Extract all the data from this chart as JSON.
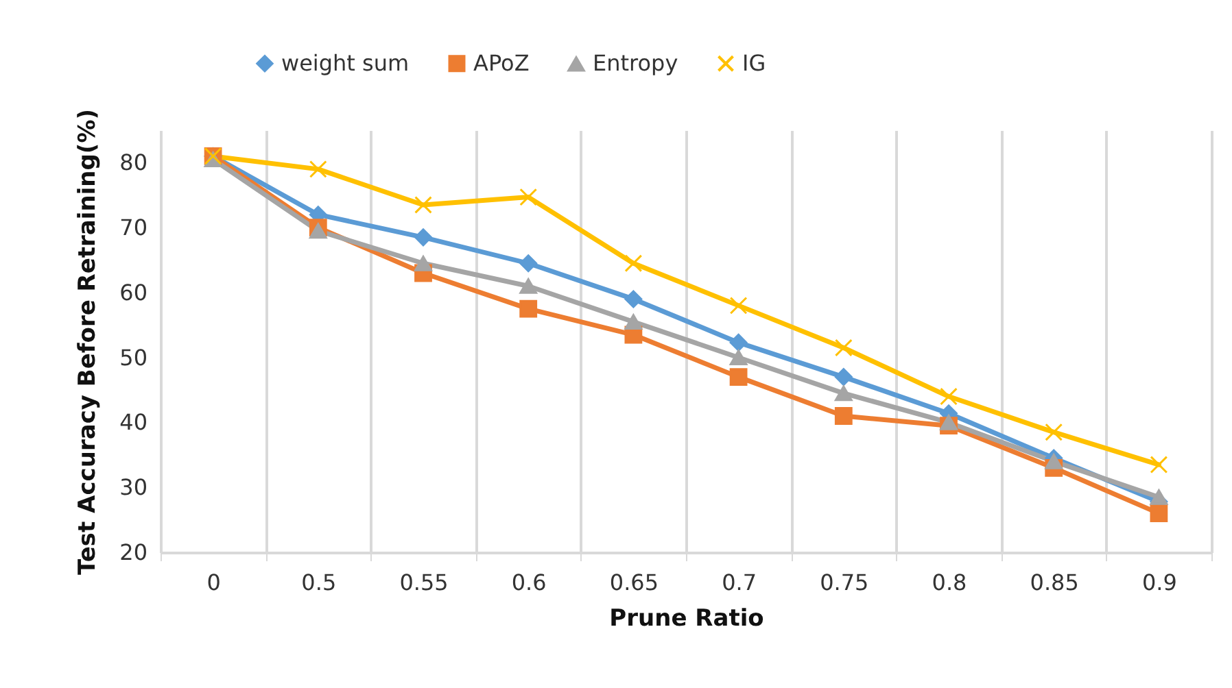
{
  "chart_data": {
    "type": "line",
    "xlabel": "Prune Ratio",
    "ylabel": "Test Accuracy Before Retraining(%)",
    "categories": [
      "0",
      "0.5",
      "0.55",
      "0.6",
      "0.65",
      "0.7",
      "0.75",
      "0.8",
      "0.85",
      "0.9"
    ],
    "series": [
      {
        "name": "weight sum",
        "color": "#5b9bd5",
        "marker": "diamond",
        "values": [
          81,
          72,
          68.5,
          64.5,
          59,
          52.3,
          47,
          41.4,
          34.5,
          27.8
        ]
      },
      {
        "name": "APoZ",
        "color": "#ed7d31",
        "marker": "square",
        "values": [
          81,
          70,
          63,
          57.5,
          53.5,
          47,
          41,
          39.5,
          33,
          26
        ]
      },
      {
        "name": "Entropy",
        "color": "#a5a5a5",
        "marker": "triangle",
        "values": [
          80.5,
          69.5,
          64.5,
          61,
          55.5,
          50,
          44.5,
          40,
          34,
          28.5
        ]
      },
      {
        "name": "IG",
        "color": "#ffc000",
        "marker": "cross",
        "values": [
          81,
          79,
          73.5,
          74.7,
          64.5,
          58,
          51.5,
          44,
          38.5,
          33.5
        ]
      }
    ],
    "ylim": [
      20,
      85
    ],
    "yticks": [
      20,
      30,
      40,
      50,
      60,
      70,
      80
    ],
    "grid": "x",
    "legend": "top",
    "line_style": "solid"
  }
}
